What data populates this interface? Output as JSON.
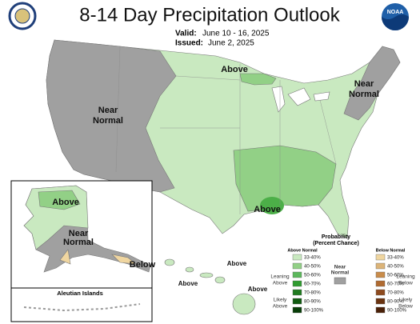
{
  "header": {
    "title": "8-14 Day Precipitation Outlook",
    "valid_label": "Valid:",
    "valid": "June 10 - 16, 2025",
    "issued_label": "Issued:",
    "issued": "June 2, 2025",
    "logo_text": "NOAA"
  },
  "map_labels": {
    "near_west": [
      "Near",
      "Normal"
    ],
    "above_north": "Above",
    "near_east": [
      "Near",
      "Normal"
    ],
    "above_gulf": "Above"
  },
  "alaska": {
    "above": "Above",
    "near": [
      "Near",
      "Normal"
    ],
    "below": "Below",
    "aleutian": "Aleutian Islands"
  },
  "hawaii": {
    "labels": [
      "Above",
      "Above",
      "Above"
    ]
  },
  "legend": {
    "title": [
      "Probability",
      "(Percent Chance)"
    ],
    "above_header": "Above Normal",
    "below_header": "Below Normal",
    "leaning_above": [
      "Leaning",
      "Above"
    ],
    "likely_above": [
      "Likely",
      "Above"
    ],
    "near": [
      "Near",
      "Normal"
    ],
    "leaning_below": [
      "Leaning",
      "Below"
    ],
    "likely_below": [
      "Likely",
      "Below"
    ],
    "above_ranges": [
      "33-40%",
      "40-50%",
      "50-60%",
      "60-70%",
      "70-80%",
      "80-90%",
      "90-100%"
    ],
    "below_ranges": [
      "33-40%",
      "40-50%",
      "50-60%",
      "60-70%",
      "70-80%",
      "80-90%",
      "90-100%"
    ]
  }
}
